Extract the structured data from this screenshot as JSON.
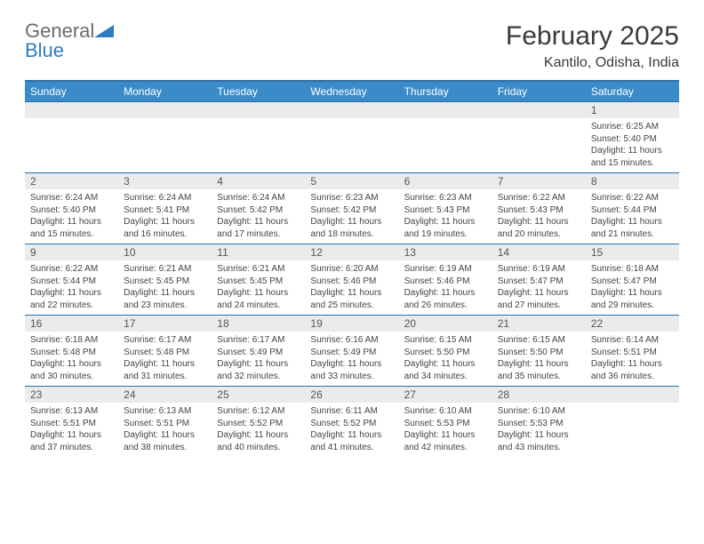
{
  "logo": {
    "text_main": "General",
    "text_accent": "Blue",
    "icon_color": "#2d7cc1"
  },
  "title": {
    "month": "February 2025",
    "location": "Kantilo, Odisha, India"
  },
  "colors": {
    "header_bg": "#3b8bc9",
    "header_border": "#2d6fa3",
    "daynum_bg": "#ebebeb",
    "text": "#333333",
    "background": "#ffffff"
  },
  "weekdays": [
    "Sunday",
    "Monday",
    "Tuesday",
    "Wednesday",
    "Thursday",
    "Friday",
    "Saturday"
  ],
  "weeks": [
    [
      {
        "n": "",
        "sr": "",
        "ss": "",
        "dl": ""
      },
      {
        "n": "",
        "sr": "",
        "ss": "",
        "dl": ""
      },
      {
        "n": "",
        "sr": "",
        "ss": "",
        "dl": ""
      },
      {
        "n": "",
        "sr": "",
        "ss": "",
        "dl": ""
      },
      {
        "n": "",
        "sr": "",
        "ss": "",
        "dl": ""
      },
      {
        "n": "",
        "sr": "",
        "ss": "",
        "dl": ""
      },
      {
        "n": "1",
        "sr": "Sunrise: 6:25 AM",
        "ss": "Sunset: 5:40 PM",
        "dl": "Daylight: 11 hours and 15 minutes."
      }
    ],
    [
      {
        "n": "2",
        "sr": "Sunrise: 6:24 AM",
        "ss": "Sunset: 5:40 PM",
        "dl": "Daylight: 11 hours and 15 minutes."
      },
      {
        "n": "3",
        "sr": "Sunrise: 6:24 AM",
        "ss": "Sunset: 5:41 PM",
        "dl": "Daylight: 11 hours and 16 minutes."
      },
      {
        "n": "4",
        "sr": "Sunrise: 6:24 AM",
        "ss": "Sunset: 5:42 PM",
        "dl": "Daylight: 11 hours and 17 minutes."
      },
      {
        "n": "5",
        "sr": "Sunrise: 6:23 AM",
        "ss": "Sunset: 5:42 PM",
        "dl": "Daylight: 11 hours and 18 minutes."
      },
      {
        "n": "6",
        "sr": "Sunrise: 6:23 AM",
        "ss": "Sunset: 5:43 PM",
        "dl": "Daylight: 11 hours and 19 minutes."
      },
      {
        "n": "7",
        "sr": "Sunrise: 6:22 AM",
        "ss": "Sunset: 5:43 PM",
        "dl": "Daylight: 11 hours and 20 minutes."
      },
      {
        "n": "8",
        "sr": "Sunrise: 6:22 AM",
        "ss": "Sunset: 5:44 PM",
        "dl": "Daylight: 11 hours and 21 minutes."
      }
    ],
    [
      {
        "n": "9",
        "sr": "Sunrise: 6:22 AM",
        "ss": "Sunset: 5:44 PM",
        "dl": "Daylight: 11 hours and 22 minutes."
      },
      {
        "n": "10",
        "sr": "Sunrise: 6:21 AM",
        "ss": "Sunset: 5:45 PM",
        "dl": "Daylight: 11 hours and 23 minutes."
      },
      {
        "n": "11",
        "sr": "Sunrise: 6:21 AM",
        "ss": "Sunset: 5:45 PM",
        "dl": "Daylight: 11 hours and 24 minutes."
      },
      {
        "n": "12",
        "sr": "Sunrise: 6:20 AM",
        "ss": "Sunset: 5:46 PM",
        "dl": "Daylight: 11 hours and 25 minutes."
      },
      {
        "n": "13",
        "sr": "Sunrise: 6:19 AM",
        "ss": "Sunset: 5:46 PM",
        "dl": "Daylight: 11 hours and 26 minutes."
      },
      {
        "n": "14",
        "sr": "Sunrise: 6:19 AM",
        "ss": "Sunset: 5:47 PM",
        "dl": "Daylight: 11 hours and 27 minutes."
      },
      {
        "n": "15",
        "sr": "Sunrise: 6:18 AM",
        "ss": "Sunset: 5:47 PM",
        "dl": "Daylight: 11 hours and 29 minutes."
      }
    ],
    [
      {
        "n": "16",
        "sr": "Sunrise: 6:18 AM",
        "ss": "Sunset: 5:48 PM",
        "dl": "Daylight: 11 hours and 30 minutes."
      },
      {
        "n": "17",
        "sr": "Sunrise: 6:17 AM",
        "ss": "Sunset: 5:48 PM",
        "dl": "Daylight: 11 hours and 31 minutes."
      },
      {
        "n": "18",
        "sr": "Sunrise: 6:17 AM",
        "ss": "Sunset: 5:49 PM",
        "dl": "Daylight: 11 hours and 32 minutes."
      },
      {
        "n": "19",
        "sr": "Sunrise: 6:16 AM",
        "ss": "Sunset: 5:49 PM",
        "dl": "Daylight: 11 hours and 33 minutes."
      },
      {
        "n": "20",
        "sr": "Sunrise: 6:15 AM",
        "ss": "Sunset: 5:50 PM",
        "dl": "Daylight: 11 hours and 34 minutes."
      },
      {
        "n": "21",
        "sr": "Sunrise: 6:15 AM",
        "ss": "Sunset: 5:50 PM",
        "dl": "Daylight: 11 hours and 35 minutes."
      },
      {
        "n": "22",
        "sr": "Sunrise: 6:14 AM",
        "ss": "Sunset: 5:51 PM",
        "dl": "Daylight: 11 hours and 36 minutes."
      }
    ],
    [
      {
        "n": "23",
        "sr": "Sunrise: 6:13 AM",
        "ss": "Sunset: 5:51 PM",
        "dl": "Daylight: 11 hours and 37 minutes."
      },
      {
        "n": "24",
        "sr": "Sunrise: 6:13 AM",
        "ss": "Sunset: 5:51 PM",
        "dl": "Daylight: 11 hours and 38 minutes."
      },
      {
        "n": "25",
        "sr": "Sunrise: 6:12 AM",
        "ss": "Sunset: 5:52 PM",
        "dl": "Daylight: 11 hours and 40 minutes."
      },
      {
        "n": "26",
        "sr": "Sunrise: 6:11 AM",
        "ss": "Sunset: 5:52 PM",
        "dl": "Daylight: 11 hours and 41 minutes."
      },
      {
        "n": "27",
        "sr": "Sunrise: 6:10 AM",
        "ss": "Sunset: 5:53 PM",
        "dl": "Daylight: 11 hours and 42 minutes."
      },
      {
        "n": "28",
        "sr": "Sunrise: 6:10 AM",
        "ss": "Sunset: 5:53 PM",
        "dl": "Daylight: 11 hours and 43 minutes."
      },
      {
        "n": "",
        "sr": "",
        "ss": "",
        "dl": ""
      }
    ]
  ]
}
